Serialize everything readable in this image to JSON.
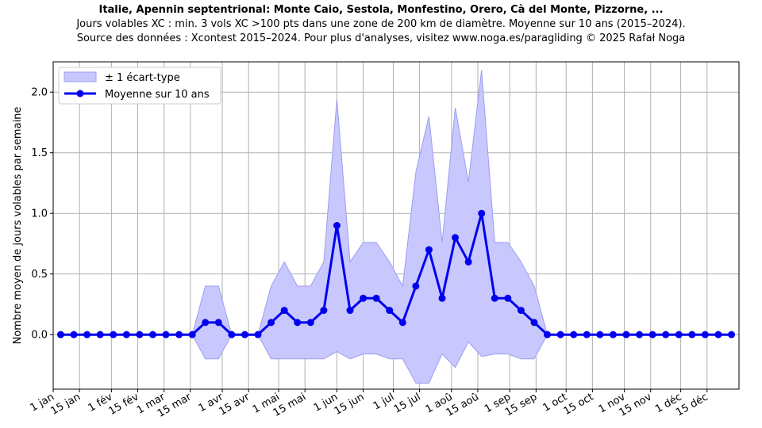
{
  "chart_data": {
    "type": "line",
    "title": "Italie, Apennin septentrional: Monte Caio, Sestola, Monfestino, Orero, Cà del Monte, Pizzorne, ...",
    "subtitle": "Jours volables XC : min. 3 vols XC >100 pts dans une zone de 200 km de diamètre. Moyenne sur 10 ans (2015–2024).",
    "source": "Source des données : Xcontest 2015–2024. Pour plus d'analyses, visitez www.noga.es/paragliding © 2025 Rafał Noga",
    "ylabel": "Nombre moyen de jours volables par semaine",
    "xlabel": "",
    "ylim": [
      -0.45,
      2.25
    ],
    "yticks": [
      0.0,
      0.5,
      1.0,
      1.5,
      2.0
    ],
    "ytick_labels": [
      "0.0",
      "0.5",
      "1.0",
      "1.5",
      "2.0"
    ],
    "xlim_day": [
      0,
      365
    ],
    "xticks_day": [
      0,
      14,
      31,
      45,
      59,
      73,
      90,
      104,
      120,
      134,
      151,
      165,
      181,
      195,
      212,
      226,
      243,
      257,
      273,
      287,
      304,
      318,
      334,
      348
    ],
    "xtick_labels": [
      "1 jan",
      "15 jan",
      "1 fév",
      "15 fév",
      "1 mar",
      "15 mar",
      "1 avr",
      "15 avr",
      "1 mai",
      "15 mai",
      "1 jun",
      "15 jun",
      "1 jul",
      "15 jul",
      "1 aoû",
      "15 aoû",
      "1 sep",
      "15 sep",
      "1 oct",
      "15 oct",
      "1 nov",
      "15 nov",
      "1 déc",
      "15 déc"
    ],
    "grid": true,
    "legend_position": "top-left",
    "legend": [
      "± 1 écart-type",
      "Moyenne sur 10 ans"
    ],
    "week_day": [
      4,
      11,
      18,
      25,
      32,
      39,
      46,
      53,
      60,
      67,
      74,
      81,
      88,
      95,
      102,
      109,
      116,
      123,
      130,
      137,
      144,
      151,
      158,
      165,
      172,
      179,
      186,
      193,
      200,
      207,
      214,
      221,
      228,
      235,
      242,
      249,
      256,
      263,
      270,
      277,
      284,
      291,
      298,
      305,
      312,
      319,
      326,
      333,
      340,
      347,
      354,
      361
    ],
    "series": [
      {
        "name": "Moyenne sur 10 ans",
        "values": [
          0,
          0,
          0,
          0,
          0,
          0,
          0,
          0,
          0,
          0,
          0,
          0.1,
          0.1,
          0,
          0,
          0,
          0.1,
          0.2,
          0.1,
          0.1,
          0.2,
          0.9,
          0.2,
          0.3,
          0.3,
          0.2,
          0.1,
          0.4,
          0.7,
          0.3,
          0.8,
          0.6,
          1.0,
          0.3,
          0.3,
          0.2,
          0.1,
          0,
          0,
          0,
          0,
          0,
          0,
          0,
          0,
          0,
          0,
          0,
          0,
          0,
          0,
          0
        ]
      },
      {
        "name": "± 1 écart-type",
        "upper": [
          0,
          0,
          0,
          0,
          0,
          0,
          0,
          0,
          0,
          0,
          0,
          0.4,
          0.4,
          0,
          0,
          0,
          0.4,
          0.6,
          0.4,
          0.4,
          0.6,
          1.94,
          0.6,
          0.76,
          0.76,
          0.6,
          0.4,
          1.34,
          1.8,
          0.76,
          1.87,
          1.26,
          2.18,
          0.76,
          0.76,
          0.6,
          0.4,
          0,
          0,
          0,
          0,
          0,
          0,
          0,
          0,
          0,
          0,
          0,
          0,
          0,
          0,
          0
        ],
        "lower": [
          0,
          0,
          0,
          0,
          0,
          0,
          0,
          0,
          0,
          0,
          0,
          -0.2,
          -0.2,
          0,
          0,
          0,
          -0.2,
          -0.2,
          -0.2,
          -0.2,
          -0.2,
          -0.14,
          -0.2,
          -0.16,
          -0.16,
          -0.2,
          -0.2,
          -0.4,
          -0.4,
          -0.16,
          -0.27,
          -0.06,
          -0.18,
          -0.16,
          -0.16,
          -0.2,
          -0.2,
          0,
          0,
          0,
          0,
          0,
          0,
          0,
          0,
          0,
          0,
          0,
          0,
          0,
          0,
          0
        ]
      }
    ],
    "colors": {
      "line": "#0000ee",
      "band_fill": "#c8c8ff",
      "band_edge": "#9c9cf0",
      "grid": "#b0b0b0"
    }
  }
}
